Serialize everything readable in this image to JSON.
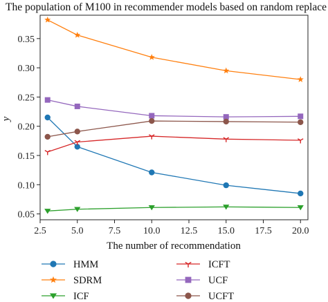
{
  "chart_data": {
    "type": "line",
    "title": "The population of M100 in recommender models based on random replace",
    "xlabel": "The number of recommendation",
    "ylabel": "y",
    "xlim": [
      2.5,
      20.5
    ],
    "ylim": [
      0.04,
      0.39
    ],
    "x_ticks": [
      2.5,
      5.0,
      7.5,
      10.0,
      12.5,
      15.0,
      17.5,
      20.0
    ],
    "x_tick_labels": [
      "2.5",
      "5.0",
      "7.5",
      "10.0",
      "12.5",
      "15.0",
      "17.5",
      "20.0"
    ],
    "y_ticks": [
      0.05,
      0.1,
      0.15,
      0.2,
      0.25,
      0.3,
      0.35
    ],
    "y_tick_labels": [
      "0.05",
      "0.10",
      "0.15",
      "0.20",
      "0.25",
      "0.30",
      "0.35"
    ],
    "x": [
      3,
      5,
      10,
      15,
      20
    ],
    "grid": false,
    "legend_position": "bottom",
    "series": [
      {
        "name": "HMM",
        "values": [
          0.215,
          0.165,
          0.121,
          0.099,
          0.085
        ],
        "color": "#1f77b4",
        "marker": "circle"
      },
      {
        "name": "SDRM",
        "values": [
          0.382,
          0.356,
          0.318,
          0.295,
          0.28
        ],
        "color": "#ff7f0e",
        "marker": "star"
      },
      {
        "name": "ICF",
        "values": [
          0.055,
          0.058,
          0.061,
          0.062,
          0.061
        ],
        "color": "#2ca02c",
        "marker": "triangle-down"
      },
      {
        "name": "ICFT",
        "values": [
          0.156,
          0.173,
          0.183,
          0.178,
          0.176
        ],
        "color": "#d62728",
        "marker": "tri-down"
      },
      {
        "name": "UCF",
        "values": [
          0.245,
          0.234,
          0.218,
          0.216,
          0.217
        ],
        "color": "#9467bd",
        "marker": "square"
      },
      {
        "name": "UCFT",
        "values": [
          0.182,
          0.191,
          0.209,
          0.208,
          0.207
        ],
        "color": "#8c564b",
        "marker": "circle"
      }
    ]
  }
}
